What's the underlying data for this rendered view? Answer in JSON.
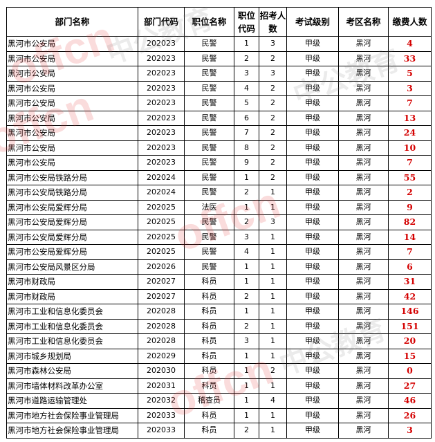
{
  "headers": [
    "部门名称",
    "部门代码",
    "职位名称",
    "职位代码",
    "招考人数",
    "考试级别",
    "考区名称",
    "缴费人数"
  ],
  "colors": {
    "paid_text": "#d40000",
    "border": "#000000"
  },
  "watermark": {
    "brand_latin": "offcn",
    "brand_cn": "中公教育"
  },
  "rows": [
    {
      "dept": "黑河市公安局",
      "dept_code": "202023",
      "position": "民警",
      "pos_code": "1",
      "hires": "3",
      "level": "甲级",
      "area": "黑河",
      "paid": "4"
    },
    {
      "dept": "黑河市公安局",
      "dept_code": "202023",
      "position": "民警",
      "pos_code": "2",
      "hires": "2",
      "level": "甲级",
      "area": "黑河",
      "paid": "33"
    },
    {
      "dept": "黑河市公安局",
      "dept_code": "202023",
      "position": "民警",
      "pos_code": "3",
      "hires": "3",
      "level": "甲级",
      "area": "黑河",
      "paid": "5"
    },
    {
      "dept": "黑河市公安局",
      "dept_code": "202023",
      "position": "民警",
      "pos_code": "4",
      "hires": "2",
      "level": "甲级",
      "area": "黑河",
      "paid": "3"
    },
    {
      "dept": "黑河市公安局",
      "dept_code": "202023",
      "position": "民警",
      "pos_code": "5",
      "hires": "2",
      "level": "甲级",
      "area": "黑河",
      "paid": "7"
    },
    {
      "dept": "黑河市公安局",
      "dept_code": "202023",
      "position": "民警",
      "pos_code": "6",
      "hires": "2",
      "level": "甲级",
      "area": "黑河",
      "paid": "13"
    },
    {
      "dept": "黑河市公安局",
      "dept_code": "202023",
      "position": "民警",
      "pos_code": "7",
      "hires": "2",
      "level": "甲级",
      "area": "黑河",
      "paid": "24"
    },
    {
      "dept": "黑河市公安局",
      "dept_code": "202023",
      "position": "民警",
      "pos_code": "8",
      "hires": "2",
      "level": "甲级",
      "area": "黑河",
      "paid": "10"
    },
    {
      "dept": "黑河市公安局",
      "dept_code": "202023",
      "position": "民警",
      "pos_code": "9",
      "hires": "2",
      "level": "甲级",
      "area": "黑河",
      "paid": "7"
    },
    {
      "dept": "黑河市公安局铁路分局",
      "dept_code": "202024",
      "position": "民警",
      "pos_code": "1",
      "hires": "2",
      "level": "甲级",
      "area": "黑河",
      "paid": "55"
    },
    {
      "dept": "黑河市公安局铁路分局",
      "dept_code": "202024",
      "position": "民警",
      "pos_code": "2",
      "hires": "1",
      "level": "甲级",
      "area": "黑河",
      "paid": "2"
    },
    {
      "dept": "黑河市公安局爱辉分局",
      "dept_code": "202025",
      "position": "法医",
      "pos_code": "1",
      "hires": "1",
      "level": "甲级",
      "area": "黑河",
      "paid": "9"
    },
    {
      "dept": "黑河市公安局爱辉分局",
      "dept_code": "202025",
      "position": "民警",
      "pos_code": "2",
      "hires": "3",
      "level": "甲级",
      "area": "黑河",
      "paid": "82"
    },
    {
      "dept": "黑河市公安局爱辉分局",
      "dept_code": "202025",
      "position": "民警",
      "pos_code": "3",
      "hires": "1",
      "level": "甲级",
      "area": "黑河",
      "paid": "14"
    },
    {
      "dept": "黑河市公安局爱辉分局",
      "dept_code": "202025",
      "position": "民警",
      "pos_code": "4",
      "hires": "1",
      "level": "甲级",
      "area": "黑河",
      "paid": "7"
    },
    {
      "dept": "黑河市公安局风景区分局",
      "dept_code": "202026",
      "position": "民警",
      "pos_code": "1",
      "hires": "1",
      "level": "甲级",
      "area": "黑河",
      "paid": "6"
    },
    {
      "dept": "黑河市财政局",
      "dept_code": "202027",
      "position": "科员",
      "pos_code": "1",
      "hires": "1",
      "level": "甲级",
      "area": "黑河",
      "paid": "31"
    },
    {
      "dept": "黑河市财政局",
      "dept_code": "202027",
      "position": "科员",
      "pos_code": "2",
      "hires": "1",
      "level": "甲级",
      "area": "黑河",
      "paid": "42"
    },
    {
      "dept": "黑河市工业和信息化委员会",
      "dept_code": "202028",
      "position": "科员",
      "pos_code": "1",
      "hires": "1",
      "level": "甲级",
      "area": "黑河",
      "paid": "146"
    },
    {
      "dept": "黑河市工业和信息化委员会",
      "dept_code": "202028",
      "position": "科员",
      "pos_code": "2",
      "hires": "1",
      "level": "甲级",
      "area": "黑河",
      "paid": "151"
    },
    {
      "dept": "黑河市工业和信息化委员会",
      "dept_code": "202028",
      "position": "科员",
      "pos_code": "3",
      "hires": "1",
      "level": "甲级",
      "area": "黑河",
      "paid": "20"
    },
    {
      "dept": "黑河市城乡规划局",
      "dept_code": "202029",
      "position": "科员",
      "pos_code": "1",
      "hires": "1",
      "level": "甲级",
      "area": "黑河",
      "paid": "15"
    },
    {
      "dept": "黑河市森林公安局",
      "dept_code": "202030",
      "position": "科员",
      "pos_code": "1",
      "hires": "2",
      "level": "甲级",
      "area": "黑河",
      "paid": "0"
    },
    {
      "dept": "黑河市墙体材料改革办公室",
      "dept_code": "202031",
      "position": "科员",
      "pos_code": "1",
      "hires": "1",
      "level": "甲级",
      "area": "黑河",
      "paid": "27"
    },
    {
      "dept": "黑河市道路运输管理处",
      "dept_code": "202032",
      "position": "稽查员",
      "pos_code": "1",
      "hires": "4",
      "level": "甲级",
      "area": "黑河",
      "paid": "46"
    },
    {
      "dept": "黑河市地方社会保险事业管理局",
      "dept_code": "202033",
      "position": "科员",
      "pos_code": "1",
      "hires": "1",
      "level": "甲级",
      "area": "黑河",
      "paid": "26"
    },
    {
      "dept": "黑河市地方社会保险事业管理局",
      "dept_code": "202033",
      "position": "科员",
      "pos_code": "2",
      "hires": "1",
      "level": "甲级",
      "area": "黑河",
      "paid": "3"
    }
  ]
}
